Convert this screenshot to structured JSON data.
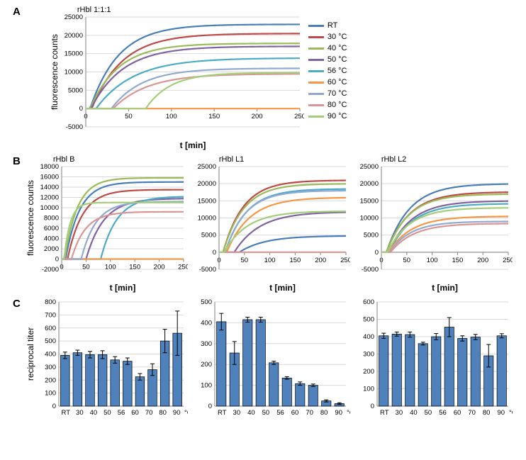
{
  "colors": {
    "background": "#ffffff",
    "grid": "#d9d9d9",
    "axis": "#808080",
    "bar_fill": "#4f81bd",
    "bar_stroke": "#000000",
    "text": "#000000"
  },
  "legend": [
    {
      "label": "RT",
      "color": "#4a7ebb"
    },
    {
      "label": "30 °C",
      "color": "#be4b48"
    },
    {
      "label": "40 °C",
      "color": "#9bbb59"
    },
    {
      "label": "50 °C",
      "color": "#8064a2"
    },
    {
      "label": "56 °C",
      "color": "#4bacc6"
    },
    {
      "label": "60 °C",
      "color": "#f79646"
    },
    {
      "label": "70 °C",
      "color": "#93a9d0"
    },
    {
      "label": "80 °C",
      "color": "#d99694"
    },
    {
      "label": "90 °C",
      "color": "#a4cf7a"
    }
  ],
  "panelA": {
    "title": "rHbl 1:1:1",
    "ylabel": "fluorescence counts",
    "xlabel": "t [min]",
    "xlim": [
      0,
      250
    ],
    "xticks": [
      0,
      50,
      100,
      150,
      200,
      250
    ],
    "ylim": [
      -5000,
      25000
    ],
    "yticks": [
      -5000,
      0,
      5000,
      10000,
      15000,
      20000,
      25000
    ],
    "series": [
      {
        "c": "#4a7ebb",
        "plateau": 23000,
        "k": 0.03,
        "delay": 5
      },
      {
        "c": "#be4b48",
        "plateau": 20500,
        "k": 0.028,
        "delay": 7
      },
      {
        "c": "#9bbb59",
        "plateau": 17800,
        "k": 0.03,
        "delay": 5
      },
      {
        "c": "#8064a2",
        "plateau": 17000,
        "k": 0.027,
        "delay": 6
      },
      {
        "c": "#4bacc6",
        "plateau": 13800,
        "k": 0.023,
        "delay": 12
      },
      {
        "c": "#f79646",
        "plateau": 0,
        "k": 0.03,
        "delay": 0
      },
      {
        "c": "#93a9d0",
        "plateau": 11000,
        "k": 0.028,
        "delay": 30
      },
      {
        "c": "#d99694",
        "plateau": 9500,
        "k": 0.025,
        "delay": 32
      },
      {
        "c": "#a4cf7a",
        "plateau": 9800,
        "k": 0.035,
        "delay": 70
      }
    ]
  },
  "panelB": [
    {
      "title": "rHbl B",
      "ylabel": "fluorescence counts",
      "xlabel": "t [min]",
      "xlim": [
        0,
        250
      ],
      "xticks": [
        0,
        50,
        100,
        150,
        200,
        250
      ],
      "ylim": [
        -2000,
        18000
      ],
      "yticks": [
        -2000,
        0,
        2000,
        4000,
        6000,
        8000,
        10000,
        12000,
        14000,
        16000,
        18000
      ],
      "series": [
        {
          "c": "#4a7ebb",
          "plateau": 15000,
          "k": 0.035,
          "delay": 8
        },
        {
          "c": "#be4b48",
          "plateau": 13500,
          "k": 0.033,
          "delay": 12
        },
        {
          "c": "#9bbb59",
          "plateau": 15800,
          "k": 0.038,
          "delay": 6
        },
        {
          "c": "#8064a2",
          "plateau": 11800,
          "k": 0.028,
          "delay": 50
        },
        {
          "c": "#4bacc6",
          "plateau": 12200,
          "k": 0.03,
          "delay": 80
        },
        {
          "c": "#f79646",
          "plateau": 0,
          "k": 0.03,
          "delay": 0
        },
        {
          "c": "#93a9d0",
          "plateau": 11200,
          "k": 0.033,
          "delay": 40
        },
        {
          "c": "#d99694",
          "plateau": 9200,
          "k": 0.035,
          "delay": 20
        },
        {
          "c": "#a4cf7a",
          "plateau": 11000,
          "k": 0.08,
          "delay": 5
        }
      ]
    },
    {
      "title": "rHbl L1",
      "ylabel": "",
      "xlabel": "t [min]",
      "xlim": [
        0,
        250
      ],
      "xticks": [
        0,
        50,
        100,
        150,
        200,
        250
      ],
      "ylim": [
        -5000,
        25000
      ],
      "yticks": [
        -5000,
        0,
        5000,
        10000,
        15000,
        20000,
        25000
      ],
      "series": [
        {
          "c": "#4a7ebb",
          "plateau": 4800,
          "k": 0.02,
          "delay": 40
        },
        {
          "c": "#be4b48",
          "plateau": 21000,
          "k": 0.025,
          "delay": 8
        },
        {
          "c": "#9bbb59",
          "plateau": 20000,
          "k": 0.025,
          "delay": 8
        },
        {
          "c": "#8064a2",
          "plateau": 11800,
          "k": 0.02,
          "delay": 30
        },
        {
          "c": "#4bacc6",
          "plateau": 18500,
          "k": 0.024,
          "delay": 12
        },
        {
          "c": "#f79646",
          "plateau": 16000,
          "k": 0.022,
          "delay": 15
        },
        {
          "c": "#93a9d0",
          "plateau": 18000,
          "k": 0.025,
          "delay": 12
        },
        {
          "c": "#d99694",
          "plateau": 0,
          "k": 0.03,
          "delay": 0
        },
        {
          "c": "#a4cf7a",
          "plateau": 12000,
          "k": 0.022,
          "delay": 10
        }
      ]
    },
    {
      "title": "rHbl L2",
      "ylabel": "",
      "xlabel": "t [min]",
      "xlim": [
        0,
        250
      ],
      "xticks": [
        0,
        50,
        100,
        150,
        200,
        250
      ],
      "ylim": [
        -5000,
        25000
      ],
      "yticks": [
        -5000,
        0,
        5000,
        10000,
        15000,
        20000,
        25000
      ],
      "series": [
        {
          "c": "#4a7ebb",
          "plateau": 20000,
          "k": 0.022,
          "delay": 10
        },
        {
          "c": "#be4b48",
          "plateau": 17600,
          "k": 0.022,
          "delay": 10
        },
        {
          "c": "#9bbb59",
          "plateau": 17000,
          "k": 0.023,
          "delay": 10
        },
        {
          "c": "#8064a2",
          "plateau": 15000,
          "k": 0.022,
          "delay": 14
        },
        {
          "c": "#4bacc6",
          "plateau": 14200,
          "k": 0.022,
          "delay": 15
        },
        {
          "c": "#f79646",
          "plateau": 10500,
          "k": 0.022,
          "delay": 14
        },
        {
          "c": "#93a9d0",
          "plateau": 9000,
          "k": 0.024,
          "delay": 16
        },
        {
          "c": "#d99694",
          "plateau": 8400,
          "k": 0.022,
          "delay": 18
        },
        {
          "c": "#a4cf7a",
          "plateau": 13000,
          "k": 0.023,
          "delay": 12
        }
      ]
    }
  ],
  "panelC": {
    "ylabel": "reciprocal titer",
    "xcats": [
      "RT",
      "30",
      "40",
      "50",
      "56",
      "60",
      "70",
      "80",
      "90"
    ],
    "xsuffix": "°C",
    "charts": [
      {
        "ylim": [
          0,
          800
        ],
        "yticks": [
          0,
          100,
          200,
          300,
          400,
          500,
          600,
          700,
          800
        ],
        "values": [
          390,
          410,
          395,
          395,
          355,
          345,
          225,
          280,
          500,
          560
        ],
        "errs": [
          25,
          20,
          25,
          30,
          25,
          25,
          25,
          45,
          90,
          170
        ],
        "use10": false
      },
      {
        "ylim": [
          0,
          500
        ],
        "yticks": [
          0,
          100,
          200,
          300,
          400,
          500
        ],
        "values": [
          405,
          255,
          415,
          415,
          208,
          135,
          108,
          100,
          25,
          12
        ],
        "errs": [
          40,
          55,
          12,
          12,
          8,
          6,
          8,
          6,
          5,
          4
        ],
        "use10": false
      },
      {
        "ylim": [
          0,
          600
        ],
        "yticks": [
          0,
          100,
          200,
          300,
          400,
          500,
          600
        ],
        "values": [
          405,
          415,
          412,
          360,
          400,
          455,
          390,
          398,
          290,
          405
        ],
        "errs": [
          15,
          12,
          15,
          8,
          18,
          55,
          15,
          15,
          65,
          12
        ],
        "use10": false
      }
    ]
  },
  "labels": {
    "A": "A",
    "B": "B",
    "C": "C"
  }
}
